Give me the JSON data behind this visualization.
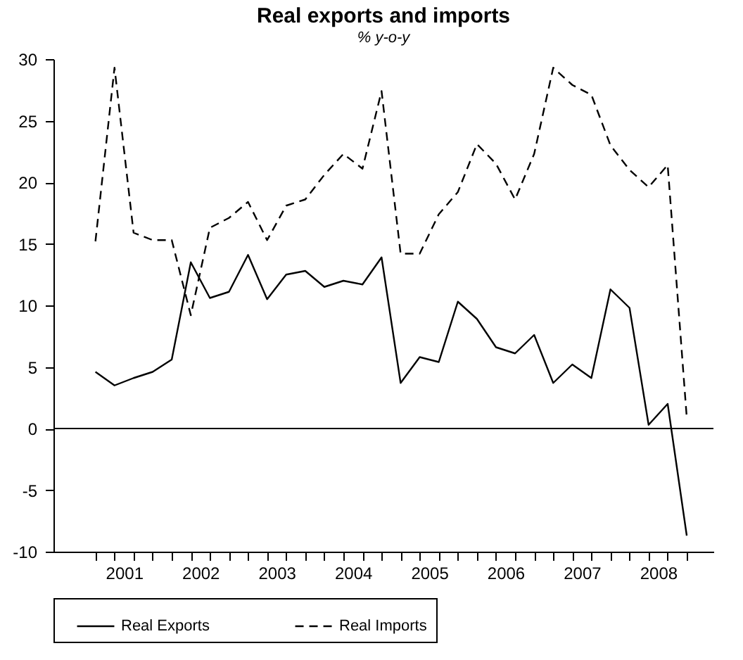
{
  "chart_data": {
    "type": "line",
    "title": "Real exports and imports",
    "subtitle": "% y-o-y",
    "x": [
      2001,
      2001.25,
      2001.5,
      2001.75,
      2002,
      2002.25,
      2002.5,
      2002.75,
      2003,
      2003.25,
      2003.5,
      2003.75,
      2004,
      2004.25,
      2004.5,
      2004.75,
      2005,
      2005.25,
      2005.5,
      2005.75,
      2006,
      2006.25,
      2006.5,
      2006.75,
      2007,
      2007.25,
      2007.5,
      2007.75,
      2008,
      2008.25,
      2008.5,
      2008.75
    ],
    "series": [
      {
        "name": "Real Exports",
        "color": "#000000",
        "line_style": "solid",
        "values": [
          4.6,
          3.5,
          4.1,
          4.6,
          5.6,
          13.5,
          10.6,
          11.1,
          14.1,
          10.5,
          12.5,
          12.8,
          11.5,
          12.0,
          11.7,
          13.9,
          3.7,
          5.8,
          5.4,
          10.3,
          8.9,
          6.6,
          6.1,
          7.6,
          3.7,
          5.2,
          4.1,
          11.3,
          9.8,
          0.3,
          2.0,
          -8.7
        ]
      },
      {
        "name": "Real Imports",
        "color": "#000000",
        "line_style": "dashed",
        "values": [
          15.2,
          29.3,
          15.9,
          15.3,
          15.3,
          9.2,
          16.3,
          17.1,
          18.4,
          15.3,
          18.1,
          18.6,
          20.6,
          22.3,
          21.1,
          27.4,
          14.2,
          14.2,
          17.4,
          19.2,
          23.1,
          21.5,
          18.6,
          22.3,
          29.3,
          27.9,
          27.1,
          23.0,
          21.0,
          19.6,
          21.4,
          0.9
        ]
      }
    ],
    "xlim": [
      2000.45,
      2009.1
    ],
    "xticks": [
      {
        "value": 2001,
        "label": null
      },
      {
        "value": 2001.25,
        "label": null
      },
      {
        "value": 2001.5,
        "label": null
      },
      {
        "value": 2001.75,
        "label": null
      },
      {
        "value": 2002,
        "label": null
      },
      {
        "value": 2002.25,
        "label": null
      },
      {
        "value": 2002.5,
        "label": null
      },
      {
        "value": 2002.75,
        "label": null
      },
      {
        "value": 2003,
        "label": null
      },
      {
        "value": 2003.25,
        "label": null
      },
      {
        "value": 2003.5,
        "label": null
      },
      {
        "value": 2003.75,
        "label": null
      },
      {
        "value": 2004,
        "label": null
      },
      {
        "value": 2004.25,
        "label": null
      },
      {
        "value": 2004.5,
        "label": null
      },
      {
        "value": 2004.75,
        "label": null
      },
      {
        "value": 2005,
        "label": null
      },
      {
        "value": 2005.25,
        "label": null
      },
      {
        "value": 2005.5,
        "label": null
      },
      {
        "value": 2005.75,
        "label": null
      },
      {
        "value": 2006,
        "label": null
      },
      {
        "value": 2006.25,
        "label": null
      },
      {
        "value": 2006.5,
        "label": null
      },
      {
        "value": 2006.75,
        "label": null
      },
      {
        "value": 2007,
        "label": null
      },
      {
        "value": 2007.25,
        "label": null
      },
      {
        "value": 2007.5,
        "label": null
      },
      {
        "value": 2007.75,
        "label": null
      },
      {
        "value": 2008,
        "label": null
      },
      {
        "value": 2008.25,
        "label": null
      },
      {
        "value": 2008.5,
        "label": null
      },
      {
        "value": 2008.75,
        "label": null
      },
      {
        "value": 2001.375,
        "label": "2001"
      },
      {
        "value": 2002.375,
        "label": "2002"
      },
      {
        "value": 2003.375,
        "label": "2003"
      },
      {
        "value": 2004.375,
        "label": "2004"
      },
      {
        "value": 2005.375,
        "label": "2005"
      },
      {
        "value": 2006.375,
        "label": "2006"
      },
      {
        "value": 2007.375,
        "label": "2007"
      },
      {
        "value": 2008.375,
        "label": "2008"
      }
    ],
    "ylim": [
      -10,
      30
    ],
    "yticks": [
      -10,
      -5,
      0,
      5,
      10,
      15,
      20,
      25,
      30
    ],
    "ref_lines": [
      {
        "axis": "y",
        "value": 0,
        "label": null
      }
    ],
    "grid": false,
    "legend": "bottom",
    "marker": "none"
  }
}
